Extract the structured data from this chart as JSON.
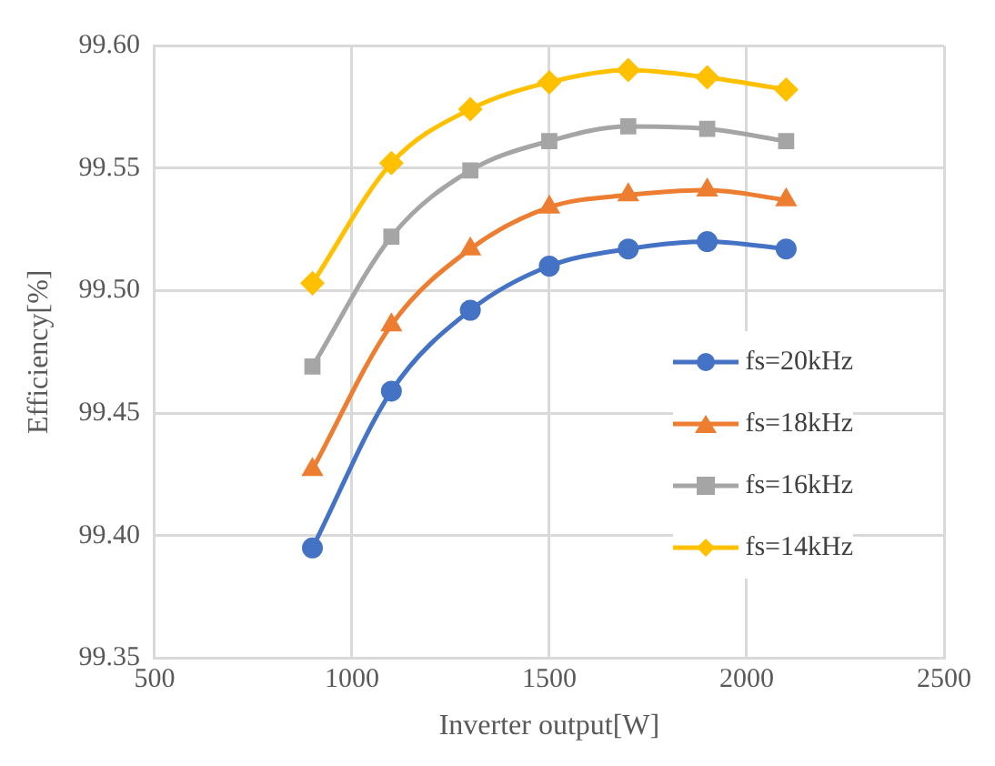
{
  "chart_data": {
    "type": "line",
    "xlabel": "Inverter output[W]",
    "ylabel": "Efficiency[%]",
    "x": [
      900,
      1100,
      1300,
      1500,
      1700,
      1900,
      2100
    ],
    "xlim": [
      500,
      2500
    ],
    "xticks": [
      500,
      1000,
      1500,
      2000,
      2500
    ],
    "ylim": [
      99.35,
      99.6
    ],
    "yticks": [
      {
        "value": 99.35,
        "label": "99.35"
      },
      {
        "value": 99.4,
        "label": "99.40"
      },
      {
        "value": 99.45,
        "label": "99.45"
      },
      {
        "value": 99.5,
        "label": "99.50"
      },
      {
        "value": 99.55,
        "label": "99.55"
      },
      {
        "value": 99.6,
        "label": "99.60"
      }
    ],
    "grid": true,
    "legend": "bottom right",
    "series": [
      {
        "name": "fs=20kHz",
        "color": "#4472c4",
        "marker": "circle",
        "values": [
          99.395,
          99.459,
          99.492,
          99.51,
          99.517,
          99.52,
          99.517
        ]
      },
      {
        "name": "fs=18kHz",
        "color": "#ed7d31",
        "marker": "triangle",
        "values": [
          99.427,
          99.486,
          99.517,
          99.534,
          99.539,
          99.541,
          99.537
        ]
      },
      {
        "name": "fs=16kHz",
        "color": "#a5a5a5",
        "marker": "square",
        "values": [
          99.469,
          99.522,
          99.549,
          99.561,
          99.567,
          99.566,
          99.561
        ]
      },
      {
        "name": "fs=14kHz",
        "color": "#ffc000",
        "marker": "diamond",
        "values": [
          99.503,
          99.552,
          99.574,
          99.585,
          99.59,
          99.587,
          99.582
        ]
      }
    ]
  }
}
